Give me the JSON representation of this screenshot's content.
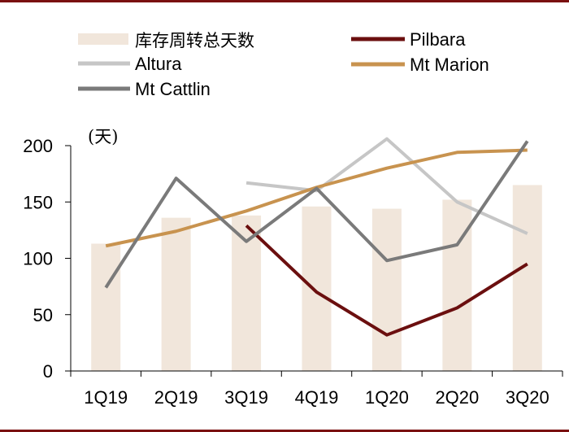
{
  "chart_data": {
    "type": "bar+line",
    "unit_label": "(天)",
    "categories": [
      "1Q19",
      "2Q19",
      "3Q19",
      "4Q19",
      "1Q20",
      "2Q20",
      "3Q20"
    ],
    "ylim": [
      0,
      200
    ],
    "yticks": [
      0,
      50,
      100,
      150,
      200
    ],
    "legend_position": "top",
    "bar_series": {
      "name": "库存周转总天数",
      "color": "#f1e6db",
      "values": [
        113,
        136,
        138,
        146,
        144,
        152,
        165
      ]
    },
    "line_series": [
      {
        "name": "Pilbara",
        "color": "#6b0f0f",
        "values": [
          null,
          null,
          129,
          70,
          32,
          56,
          95
        ]
      },
      {
        "name": "Altura",
        "color": "#c6c6c6",
        "values": [
          null,
          null,
          167,
          160,
          206,
          150,
          122
        ]
      },
      {
        "name": "Mt Marion",
        "color": "#c8934f",
        "values": [
          111,
          124,
          142,
          163,
          180,
          194,
          196
        ]
      },
      {
        "name": "Mt Cattlin",
        "color": "#7a7a7a",
        "values": [
          74,
          171,
          115,
          162,
          98,
          112,
          204
        ]
      }
    ],
    "frame_color": "#7a1010"
  }
}
